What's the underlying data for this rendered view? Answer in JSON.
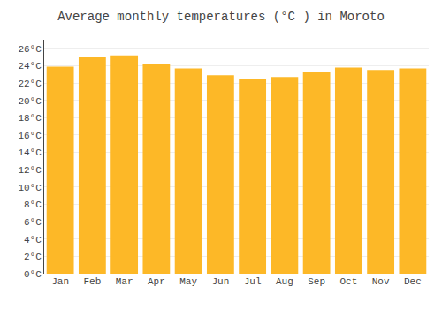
{
  "chart_data": {
    "type": "bar",
    "title": "Average monthly temperatures (°C ) in Moroto",
    "categories": [
      "Jan",
      "Feb",
      "Mar",
      "Apr",
      "May",
      "Jun",
      "Jul",
      "Aug",
      "Sep",
      "Oct",
      "Nov",
      "Dec"
    ],
    "values": [
      23.9,
      25.0,
      25.2,
      24.2,
      23.7,
      22.9,
      22.5,
      22.7,
      23.3,
      23.8,
      23.5,
      23.7
    ],
    "color": "#FDB827",
    "ylim": [
      0,
      27
    ],
    "yticks": [
      {
        "value": 0,
        "label": "0°C"
      },
      {
        "value": 2,
        "label": "2°C"
      },
      {
        "value": 4,
        "label": "4°C"
      },
      {
        "value": 6,
        "label": "6°C"
      },
      {
        "value": 8,
        "label": "8°C"
      },
      {
        "value": 10,
        "label": "10°C"
      },
      {
        "value": 12,
        "label": "12°C"
      },
      {
        "value": 14,
        "label": "14°C"
      },
      {
        "value": 16,
        "label": "16°C"
      },
      {
        "value": 18,
        "label": "18°C"
      },
      {
        "value": 20,
        "label": "20°C"
      },
      {
        "value": 22,
        "label": "22°C"
      },
      {
        "value": 24,
        "label": "24°C"
      },
      {
        "value": 26,
        "label": "26°C"
      }
    ],
    "grid": true
  }
}
